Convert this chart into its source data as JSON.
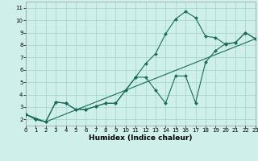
{
  "xlabel": "Humidex (Indice chaleur)",
  "xlim": [
    0,
    23
  ],
  "ylim": [
    1.5,
    11.5
  ],
  "xticks": [
    0,
    1,
    2,
    3,
    4,
    5,
    6,
    7,
    8,
    9,
    10,
    11,
    12,
    13,
    14,
    15,
    16,
    17,
    18,
    19,
    20,
    21,
    22,
    23
  ],
  "yticks": [
    2,
    3,
    4,
    5,
    6,
    7,
    8,
    9,
    10,
    11
  ],
  "bg_color": "#cff0ea",
  "line_color": "#1a6b5a",
  "grid_color": "#a8d8d0",
  "line1_x": [
    0,
    1,
    2,
    3,
    4,
    5,
    6,
    7,
    8,
    9,
    10,
    11,
    12,
    13,
    14,
    15,
    16,
    17,
    18,
    19,
    20,
    21,
    22,
    23
  ],
  "line1_y": [
    2.4,
    2.0,
    1.8,
    3.4,
    3.3,
    2.8,
    2.8,
    3.05,
    3.3,
    3.3,
    4.35,
    5.4,
    6.5,
    7.3,
    8.9,
    10.1,
    10.7,
    10.2,
    8.7,
    8.6,
    8.05,
    8.2,
    9.0,
    8.5
  ],
  "line2_x": [
    0,
    1,
    2,
    3,
    4,
    5,
    6,
    7,
    8,
    9,
    10,
    11,
    12,
    13,
    14,
    15,
    16,
    17,
    18,
    19,
    20,
    21,
    22,
    23
  ],
  "line2_y": [
    2.4,
    2.0,
    1.8,
    3.4,
    3.3,
    2.8,
    2.8,
    3.05,
    3.3,
    3.3,
    4.35,
    5.4,
    5.4,
    4.35,
    3.3,
    5.5,
    5.5,
    3.35,
    6.6,
    7.55,
    8.1,
    8.2,
    9.0,
    8.5
  ],
  "line3_x": [
    0,
    2,
    23
  ],
  "line3_y": [
    2.4,
    1.8,
    8.5
  ],
  "xlabel_fontsize": 6.5,
  "tick_fontsize": 5.0
}
